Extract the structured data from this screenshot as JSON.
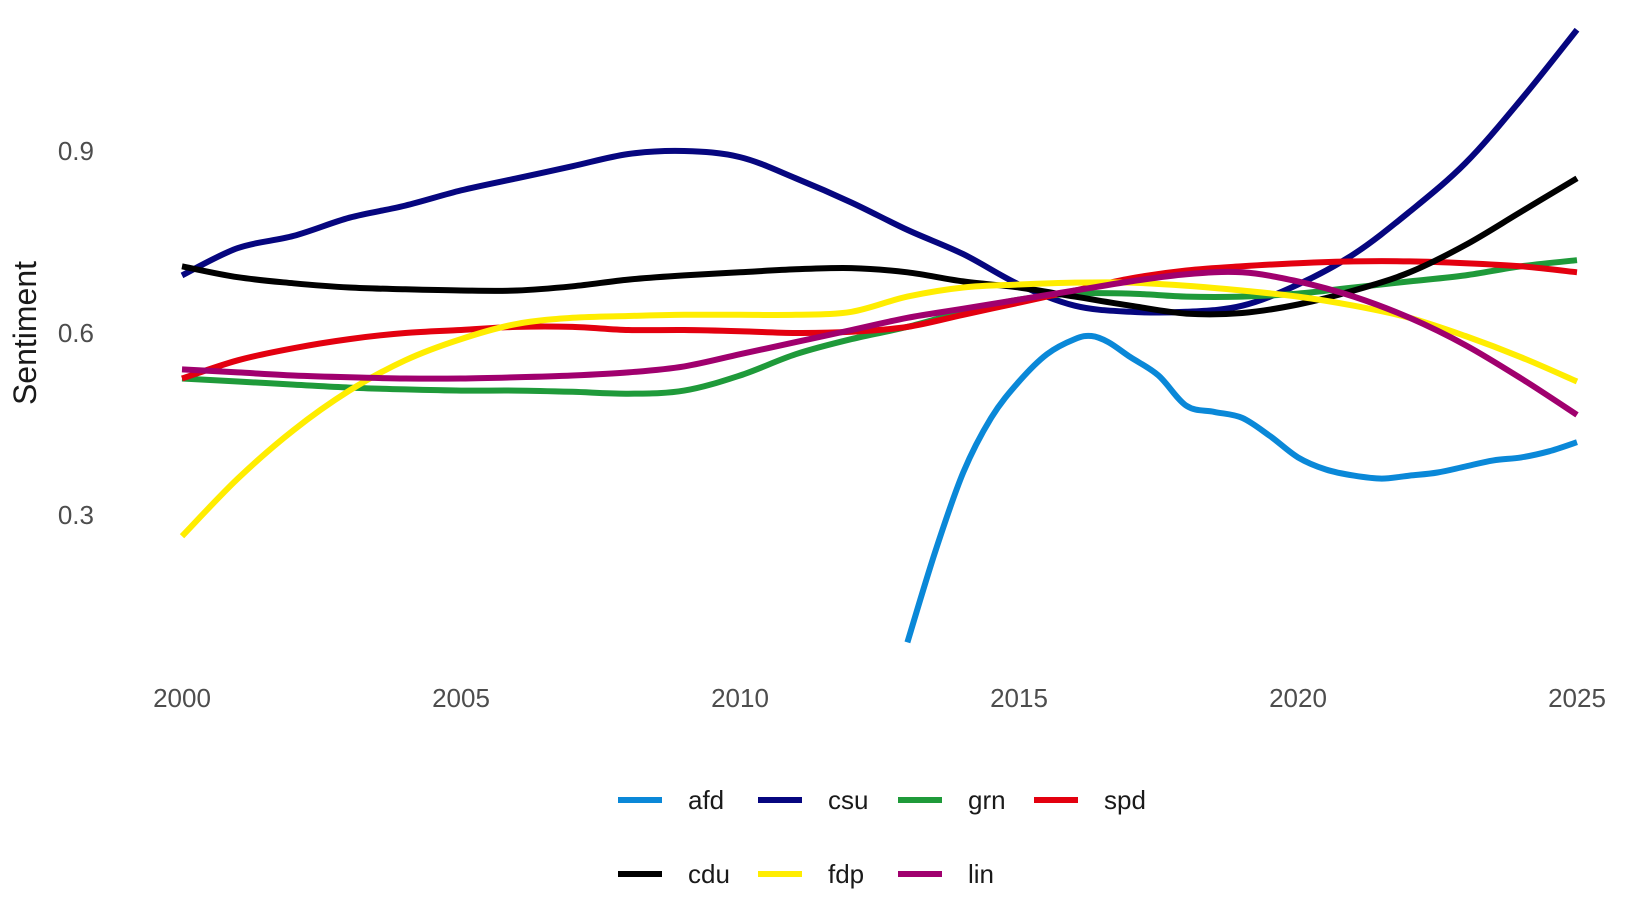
{
  "chart_data": {
    "type": "line",
    "title": "",
    "xlabel": "",
    "ylabel": "Sentiment",
    "xlim": [
      2000,
      2025
    ],
    "ylim": [
      0.05,
      1.1
    ],
    "xticks": [
      2000,
      2005,
      2010,
      2015,
      2020,
      2025
    ],
    "yticks": [
      0.3,
      0.6,
      0.9
    ],
    "grid": false,
    "legend_position": "bottom",
    "legend_order": [
      "afd",
      "csu",
      "grn",
      "spd",
      "cdu",
      "fdp",
      "lin"
    ],
    "series": [
      {
        "name": "afd",
        "color": "#0a88d8",
        "x": [
          2013,
          2013.5,
          2014,
          2014.5,
          2015,
          2015.5,
          2016,
          2016.3,
          2016.6,
          2017,
          2017.5,
          2018,
          2018.5,
          2019,
          2019.5,
          2020,
          2020.5,
          2021,
          2021.5,
          2022,
          2022.5,
          2023,
          2023.5,
          2024,
          2024.5,
          2025
        ],
        "y": [
          0.09,
          0.24,
          0.37,
          0.46,
          0.52,
          0.565,
          0.59,
          0.595,
          0.585,
          0.56,
          0.53,
          0.48,
          0.47,
          0.46,
          0.43,
          0.395,
          0.375,
          0.365,
          0.36,
          0.365,
          0.37,
          0.38,
          0.39,
          0.395,
          0.405,
          0.42
        ]
      },
      {
        "name": "csu",
        "color": "#06067f",
        "x": [
          2000,
          2001,
          2002,
          2003,
          2004,
          2005,
          2006,
          2007,
          2008,
          2009,
          2010,
          2011,
          2012,
          2013,
          2014,
          2015,
          2016,
          2017,
          2018,
          2019,
          2020,
          2021,
          2022,
          2023,
          2024,
          2025
        ],
        "y": [
          0.695,
          0.74,
          0.76,
          0.79,
          0.81,
          0.835,
          0.855,
          0.875,
          0.895,
          0.9,
          0.89,
          0.855,
          0.815,
          0.77,
          0.73,
          0.68,
          0.645,
          0.635,
          0.635,
          0.645,
          0.68,
          0.73,
          0.8,
          0.88,
          0.985,
          1.1
        ]
      },
      {
        "name": "grn",
        "color": "#1f9a3a",
        "x": [
          2000,
          2001,
          2002,
          2003,
          2004,
          2005,
          2006,
          2007,
          2008,
          2009,
          2010,
          2011,
          2012,
          2013,
          2014,
          2015,
          2016,
          2017,
          2018,
          2019,
          2020,
          2021,
          2022,
          2023,
          2024,
          2025
        ],
        "y": [
          0.525,
          0.52,
          0.515,
          0.51,
          0.507,
          0.505,
          0.505,
          0.503,
          0.5,
          0.505,
          0.53,
          0.565,
          0.59,
          0.61,
          0.635,
          0.655,
          0.665,
          0.665,
          0.66,
          0.66,
          0.665,
          0.675,
          0.685,
          0.695,
          0.71,
          0.72
        ]
      },
      {
        "name": "spd",
        "color": "#e3000f",
        "x": [
          2000,
          2001,
          2002,
          2003,
          2004,
          2005,
          2006,
          2007,
          2008,
          2009,
          2010,
          2011,
          2012,
          2013,
          2014,
          2015,
          2016,
          2017,
          2018,
          2019,
          2020,
          2021,
          2022,
          2023,
          2024,
          2025
        ],
        "y": [
          0.525,
          0.555,
          0.575,
          0.59,
          0.6,
          0.605,
          0.61,
          0.61,
          0.605,
          0.605,
          0.603,
          0.6,
          0.602,
          0.61,
          0.63,
          0.65,
          0.67,
          0.69,
          0.703,
          0.71,
          0.715,
          0.718,
          0.718,
          0.715,
          0.71,
          0.7
        ]
      },
      {
        "name": "cdu",
        "color": "#000000",
        "x": [
          2000,
          2001,
          2002,
          2003,
          2004,
          2005,
          2006,
          2007,
          2008,
          2009,
          2010,
          2011,
          2012,
          2013,
          2014,
          2015,
          2016,
          2017,
          2018,
          2019,
          2020,
          2021,
          2022,
          2023,
          2024,
          2025
        ],
        "y": [
          0.71,
          0.692,
          0.682,
          0.675,
          0.672,
          0.67,
          0.67,
          0.677,
          0.688,
          0.695,
          0.7,
          0.705,
          0.707,
          0.7,
          0.685,
          0.675,
          0.66,
          0.645,
          0.632,
          0.633,
          0.647,
          0.67,
          0.7,
          0.745,
          0.8,
          0.855
        ]
      },
      {
        "name": "fdp",
        "color": "#ffed00",
        "x": [
          2000,
          2001,
          2002,
          2003,
          2004,
          2005,
          2006,
          2007,
          2008,
          2009,
          2010,
          2011,
          2012,
          2013,
          2014,
          2015,
          2016,
          2017,
          2018,
          2019,
          2020,
          2021,
          2022,
          2023,
          2024,
          2025
        ],
        "y": [
          0.265,
          0.36,
          0.44,
          0.505,
          0.555,
          0.59,
          0.615,
          0.625,
          0.628,
          0.63,
          0.63,
          0.63,
          0.635,
          0.66,
          0.675,
          0.68,
          0.683,
          0.683,
          0.678,
          0.67,
          0.66,
          0.645,
          0.625,
          0.595,
          0.56,
          0.52
        ]
      },
      {
        "name": "lin",
        "color": "#a0006e",
        "x": [
          2000,
          2001,
          2002,
          2003,
          2004,
          2005,
          2006,
          2007,
          2008,
          2009,
          2010,
          2011,
          2012,
          2013,
          2014,
          2015,
          2016,
          2017,
          2018,
          2019,
          2020,
          2021,
          2022,
          2023,
          2024,
          2025
        ],
        "y": [
          0.54,
          0.535,
          0.53,
          0.527,
          0.525,
          0.525,
          0.527,
          0.53,
          0.535,
          0.545,
          0.565,
          0.585,
          0.605,
          0.625,
          0.64,
          0.655,
          0.67,
          0.685,
          0.697,
          0.7,
          0.685,
          0.66,
          0.625,
          0.58,
          0.525,
          0.465
        ]
      }
    ]
  }
}
